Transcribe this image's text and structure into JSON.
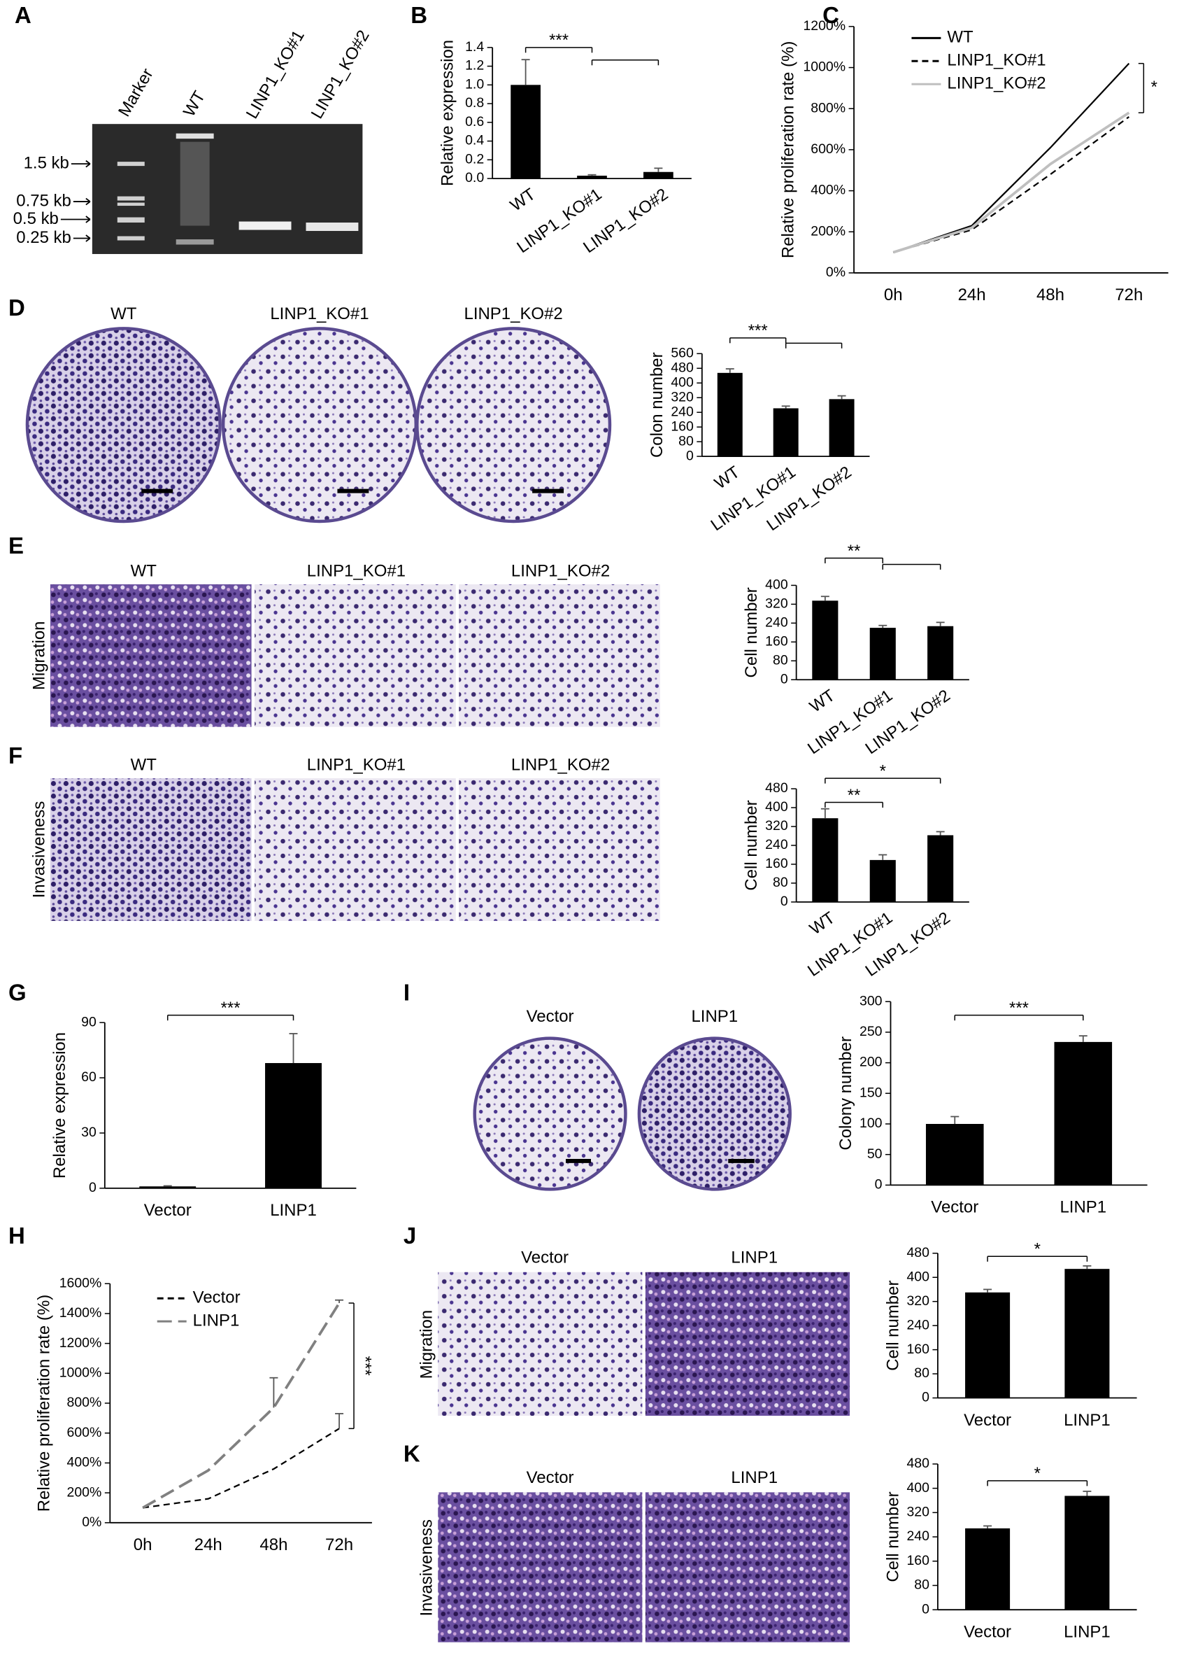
{
  "panels": [
    "A",
    "B",
    "C",
    "D",
    "E",
    "F",
    "G",
    "H",
    "I",
    "J",
    "K"
  ],
  "gel": {
    "lanes": [
      "Marker",
      "WT",
      "LINP1_KO#1",
      "LINP1_KO#2"
    ],
    "sizes": [
      "1.5 kb",
      "0.75 kb",
      "0.5 kb",
      "0.25 kb"
    ]
  },
  "images": {
    "D_columns": [
      "WT",
      "LINP1_KO#1",
      "LINP1_KO#2"
    ],
    "E_columns": [
      "WT",
      "LINP1_KO#1",
      "LINP1_KO#2"
    ],
    "E_row": "Migration",
    "F_columns": [
      "WT",
      "LINP1_KO#1",
      "LINP1_KO#2"
    ],
    "F_row": "Invasiveness",
    "I_columns": [
      "Vector",
      "LINP1"
    ],
    "J_columns": [
      "Vector",
      "LINP1"
    ],
    "J_row": "Migration",
    "K_columns": [
      "Vector",
      "LINP1"
    ],
    "K_row": "Invasiveness"
  },
  "chart_data": [
    {
      "type": "bar",
      "ylabel": "Relative expression",
      "categories": [
        "WT",
        "LINP1_KO#1",
        "LINP1_KO#2"
      ],
      "values": [
        1.0,
        0.03,
        0.07
      ],
      "errors": [
        0.27,
        0.01,
        0.04
      ],
      "color": "#000000",
      "ylim": [
        0,
        1.4
      ],
      "yticks": [
        {
          "value": 0,
          "label": "0.0"
        },
        0.2,
        0.4,
        0.6,
        0.8,
        {
          "value": 1,
          "label": "1.0"
        },
        1.2,
        1.4
      ],
      "annotations": [
        "***"
      ]
    },
    {
      "type": "line",
      "ylabel": "Relative proliferation rate (%)",
      "categories": [
        "0h",
        "24h",
        "48h",
        "72h"
      ],
      "series": [
        {
          "name": "WT",
          "color": "#000000",
          "line_style": "solid",
          "values": [
            100,
            230,
            610,
            1020
          ]
        },
        {
          "name": "LINP1_KO#1",
          "color": "#000000",
          "line_style": "dashed",
          "values": [
            100,
            210,
            480,
            760
          ]
        },
        {
          "name": "LINP1_KO#2",
          "color": "#bfbfbf",
          "line_style": "solid",
          "values": [
            100,
            220,
            530,
            780
          ]
        }
      ],
      "ylim": [
        0,
        1200
      ],
      "yticks": [
        {
          "value": 0,
          "label": "0%"
        },
        {
          "value": 200,
          "label": "200%"
        },
        {
          "value": 400,
          "label": "400%"
        },
        {
          "value": 600,
          "label": "600%"
        },
        {
          "value": 800,
          "label": "800%"
        },
        {
          "value": 1000,
          "label": "1000%"
        },
        {
          "value": 1200,
          "label": "1200%"
        }
      ],
      "annotations": [
        "*"
      ]
    },
    {
      "type": "bar",
      "ylabel": "Colon number",
      "categories": [
        "WT",
        "LINP1_KO#1",
        "LINP1_KO#2"
      ],
      "values": [
        455,
        262,
        312
      ],
      "errors": [
        22,
        12,
        18
      ],
      "color": "#000000",
      "ylim": [
        0,
        560
      ],
      "yticks": [
        0,
        80,
        160,
        240,
        320,
        400,
        480,
        560
      ],
      "annotations": [
        "***"
      ]
    },
    {
      "type": "bar",
      "ylabel": "Cell number",
      "categories": [
        "WT",
        "LINP1_KO#1",
        "LINP1_KO#2"
      ],
      "values": [
        335,
        220,
        227
      ],
      "errors": [
        18,
        10,
        16
      ],
      "color": "#000000",
      "ylim": [
        0,
        400
      ],
      "yticks": [
        0,
        80,
        160,
        240,
        320,
        400
      ],
      "annotations": [
        "**"
      ]
    },
    {
      "type": "bar",
      "ylabel": "Cell number",
      "categories": [
        "WT",
        "LINP1_KO#1",
        "LINP1_KO#2"
      ],
      "values": [
        355,
        178,
        283
      ],
      "errors": [
        40,
        22,
        15
      ],
      "color": "#000000",
      "ylim": [
        0,
        480
      ],
      "yticks": [
        0,
        80,
        160,
        240,
        320,
        400,
        480
      ],
      "annotations": [
        "**",
        "*"
      ]
    },
    {
      "type": "bar",
      "ylabel": "Relative  expression",
      "categories": [
        "Vector",
        "LINP1"
      ],
      "values": [
        1,
        68
      ],
      "errors": [
        0.3,
        16
      ],
      "color": "#000000",
      "ylim": [
        0,
        90
      ],
      "yticks": [
        0,
        30,
        60,
        90
      ],
      "annotations": [
        "***"
      ]
    },
    {
      "type": "line",
      "ylabel": "Relative proliferation rate (%)",
      "categories": [
        "0h",
        "24h",
        "48h",
        "72h"
      ],
      "series": [
        {
          "name": "Vector",
          "color": "#000000",
          "line_style": "dashed",
          "values": [
            100,
            160,
            360,
            630
          ],
          "errors": [
            null,
            null,
            null,
            100
          ]
        },
        {
          "name": "LINP1",
          "color": "#808080",
          "line_style": "long-dashed",
          "values": [
            100,
            350,
            770,
            1470
          ],
          "errors": [
            null,
            null,
            200,
            20
          ]
        }
      ],
      "ylim": [
        0,
        1600
      ],
      "yticks": [
        {
          "value": 0,
          "label": "0%"
        },
        {
          "value": 200,
          "label": "200%"
        },
        {
          "value": 400,
          "label": "400%"
        },
        {
          "value": 600,
          "label": "600%"
        },
        {
          "value": 800,
          "label": "800%"
        },
        {
          "value": 1000,
          "label": "1000%"
        },
        {
          "value": 1200,
          "label": "1200%"
        },
        {
          "value": 1400,
          "label": "1400%"
        },
        {
          "value": 1600,
          "label": "1600%"
        }
      ],
      "annotations": [
        "***"
      ]
    },
    {
      "type": "bar",
      "ylabel": "Colony number",
      "categories": [
        "Vector",
        "LINP1"
      ],
      "values": [
        100,
        234
      ],
      "errors": [
        12,
        10
      ],
      "color": "#000000",
      "ylim": [
        0,
        300
      ],
      "yticks": [
        0,
        50,
        100,
        150,
        200,
        250,
        300
      ],
      "annotations": [
        "***"
      ]
    },
    {
      "type": "bar",
      "ylabel": "Cell number",
      "categories": [
        "Vector",
        "LINP1"
      ],
      "values": [
        350,
        428
      ],
      "errors": [
        10,
        10
      ],
      "color": "#000000",
      "ylim": [
        0,
        480
      ],
      "yticks": [
        0,
        80,
        160,
        240,
        320,
        400,
        480
      ],
      "annotations": [
        "*"
      ]
    },
    {
      "type": "bar",
      "ylabel": "Cell number",
      "categories": [
        "Vector",
        "LINP1"
      ],
      "values": [
        268,
        375
      ],
      "errors": [
        8,
        15
      ],
      "color": "#000000",
      "ylim": [
        0,
        480
      ],
      "yticks": [
        0,
        80,
        160,
        240,
        320,
        400,
        480
      ],
      "annotations": [
        "*"
      ]
    }
  ]
}
